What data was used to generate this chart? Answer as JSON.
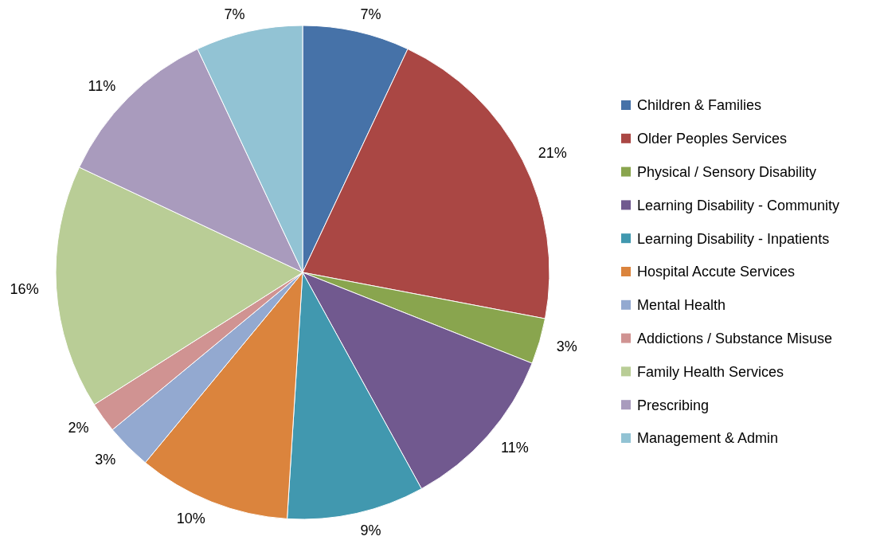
{
  "chart_data": {
    "type": "pie",
    "categories": [
      "Children & Families",
      "Older Peoples Services",
      "Physical / Sensory Disability",
      "Learning Disability - Community",
      "Learning Disability - Inpatients",
      "Hospital Accute Services",
      "Mental Health",
      "Addictions / Substance Misuse",
      "Family Health Services",
      "Prescribing",
      "Management & Admin"
    ],
    "values": [
      7,
      21,
      3,
      11,
      9,
      10,
      3,
      2,
      16,
      11,
      7
    ],
    "colors": [
      "#4672a8",
      "#aa4744",
      "#89a54e",
      "#71598f",
      "#4198af",
      "#db843d",
      "#93a9d0",
      "#d09392",
      "#b9cd96",
      "#a99bbd",
      "#92c3d4"
    ],
    "value_labels": [
      "7%",
      "21%",
      "3%",
      "11%",
      "9%",
      "10%",
      "3%",
      "2%",
      "16%",
      "11%",
      "7%"
    ],
    "legend": "right"
  }
}
